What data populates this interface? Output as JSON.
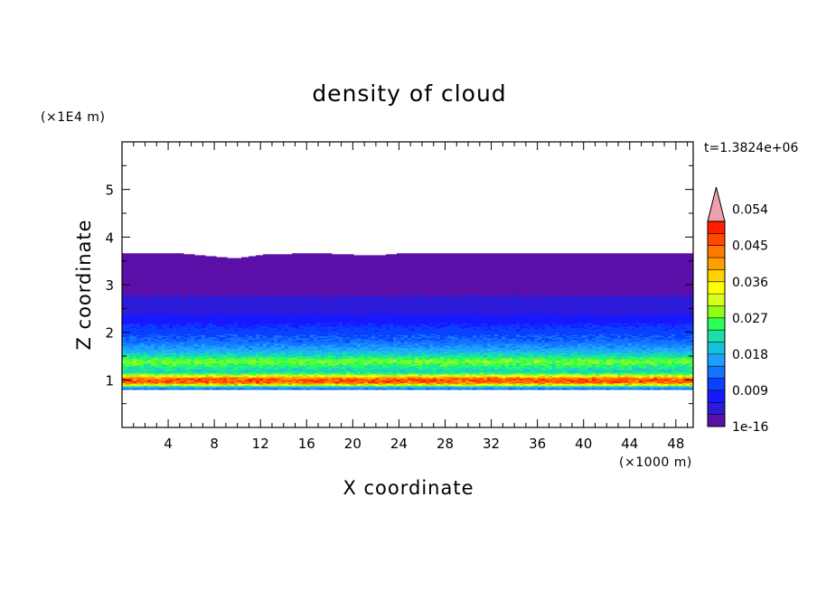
{
  "chart_data": {
    "type": "heatmap",
    "title": "density of cloud",
    "xlabel": "X coordinate",
    "ylabel": "Z coordinate",
    "x_unit": "(×1000 m)",
    "y_unit": "(×1E4 m)",
    "time_label": "t=1.3824e+06",
    "xlim": [
      0,
      49.5
    ],
    "ylim": [
      0,
      6
    ],
    "x_ticks": [
      "4",
      "8",
      "12",
      "16",
      "20",
      "24",
      "28",
      "32",
      "36",
      "40",
      "44",
      "48"
    ],
    "y_ticks": [
      "1",
      "2",
      "3",
      "4",
      "5"
    ],
    "grid": false,
    "colorbar": {
      "range": [
        0,
        0.06
      ],
      "tick_labels": [
        "1e-16",
        "0.009",
        "0.018",
        "0.027",
        "0.036",
        "0.045",
        "0.054"
      ],
      "extend": "max",
      "colors": [
        "#5a10a8",
        "#2d1ad8",
        "#1818ff",
        "#0a40ff",
        "#1274ff",
        "#1ea0ff",
        "#18c0e0",
        "#1ae0a8",
        "#28ff58",
        "#90ff18",
        "#d8ff20",
        "#ffff00",
        "#ffd200",
        "#ffa000",
        "#ff7800",
        "#ff4800",
        "#ff1e00",
        "#f0a0a8"
      ]
    },
    "profile": {
      "z": [
        0.8,
        0.84,
        0.88,
        0.9,
        0.95,
        1.0,
        1.04,
        1.08,
        1.12,
        1.18,
        1.25,
        1.33,
        1.4,
        1.48,
        1.56,
        1.64,
        1.72,
        1.82,
        1.92,
        2.02,
        2.12,
        2.22,
        2.32,
        2.42,
        2.6,
        2.78,
        2.95,
        3.15,
        3.4,
        3.65
      ],
      "density": [
        0.013,
        0.02,
        0.03,
        0.04,
        0.052,
        0.055,
        0.052,
        0.042,
        0.033,
        0.025,
        0.027,
        0.03,
        0.033,
        0.028,
        0.024,
        0.02,
        0.018,
        0.015,
        0.014,
        0.012,
        0.011,
        0.0095,
        0.008,
        0.0065,
        0.005,
        0.0035,
        0.002,
        0.0007,
        0.0003,
        0.0001
      ]
    },
    "cloud_top": [
      3.65,
      3.65,
      3.66,
      3.6,
      3.55,
      3.64,
      3.65,
      3.66,
      3.63,
      3.62,
      3.67,
      3.7,
      3.72,
      3.72,
      3.72,
      3.72,
      3.71,
      3.7,
      3.7,
      3.69,
      3.65
    ]
  }
}
